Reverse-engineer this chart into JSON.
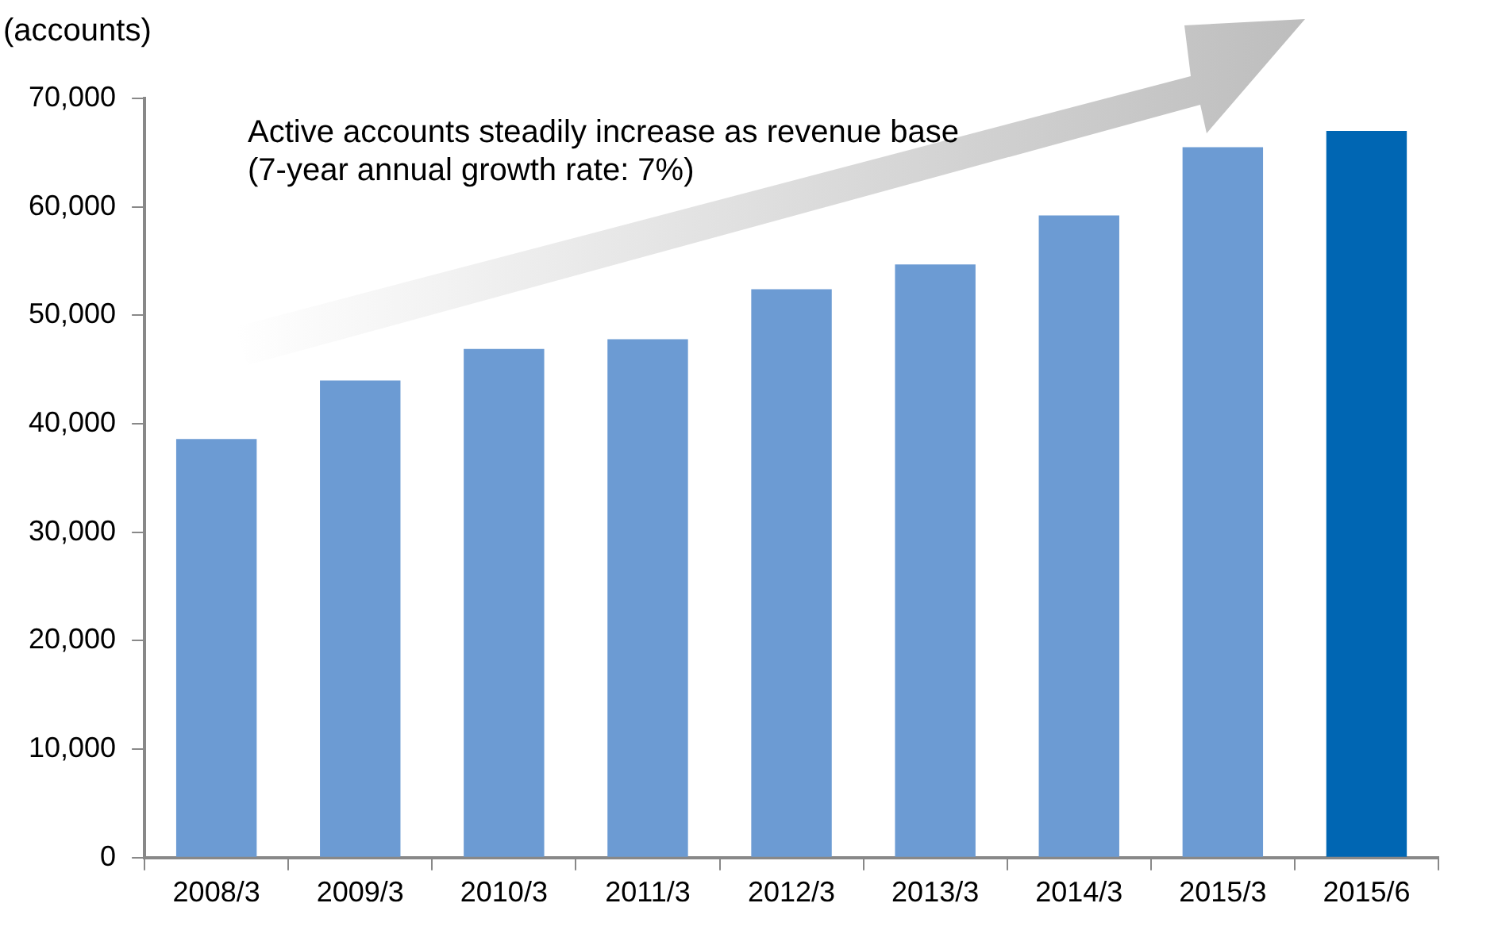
{
  "chart_data": {
    "type": "bar",
    "ylabel": "(accounts)",
    "annotations": [
      "Active accounts steadily increase as revenue base\n(7-year annual growth rate: 7%)"
    ],
    "categories": [
      "2008/3",
      "2009/3",
      "2010/3",
      "2011/3",
      "2012/3",
      "2013/3",
      "2014/3",
      "2015/3",
      "2015/6"
    ],
    "values": [
      38600,
      44000,
      46900,
      47800,
      52400,
      54700,
      59200,
      65500,
      67000
    ],
    "colors": [
      "#6c9bd3",
      "#6c9bd3",
      "#6c9bd3",
      "#6c9bd3",
      "#6c9bd3",
      "#6c9bd3",
      "#6c9bd3",
      "#6c9bd3",
      "#0066b3"
    ],
    "ylim": [
      0,
      70000
    ],
    "yticks": [
      {
        "value": 0,
        "label": "0"
      },
      {
        "value": 10000,
        "label": "10,000"
      },
      {
        "value": 20000,
        "label": "20,000"
      },
      {
        "value": 30000,
        "label": "30,000"
      },
      {
        "value": 40000,
        "label": "40,000"
      },
      {
        "value": 50000,
        "label": "50,000"
      },
      {
        "value": 60000,
        "label": "60,000"
      },
      {
        "value": 70000,
        "label": "70,000"
      }
    ],
    "grid": false,
    "legend": false
  }
}
